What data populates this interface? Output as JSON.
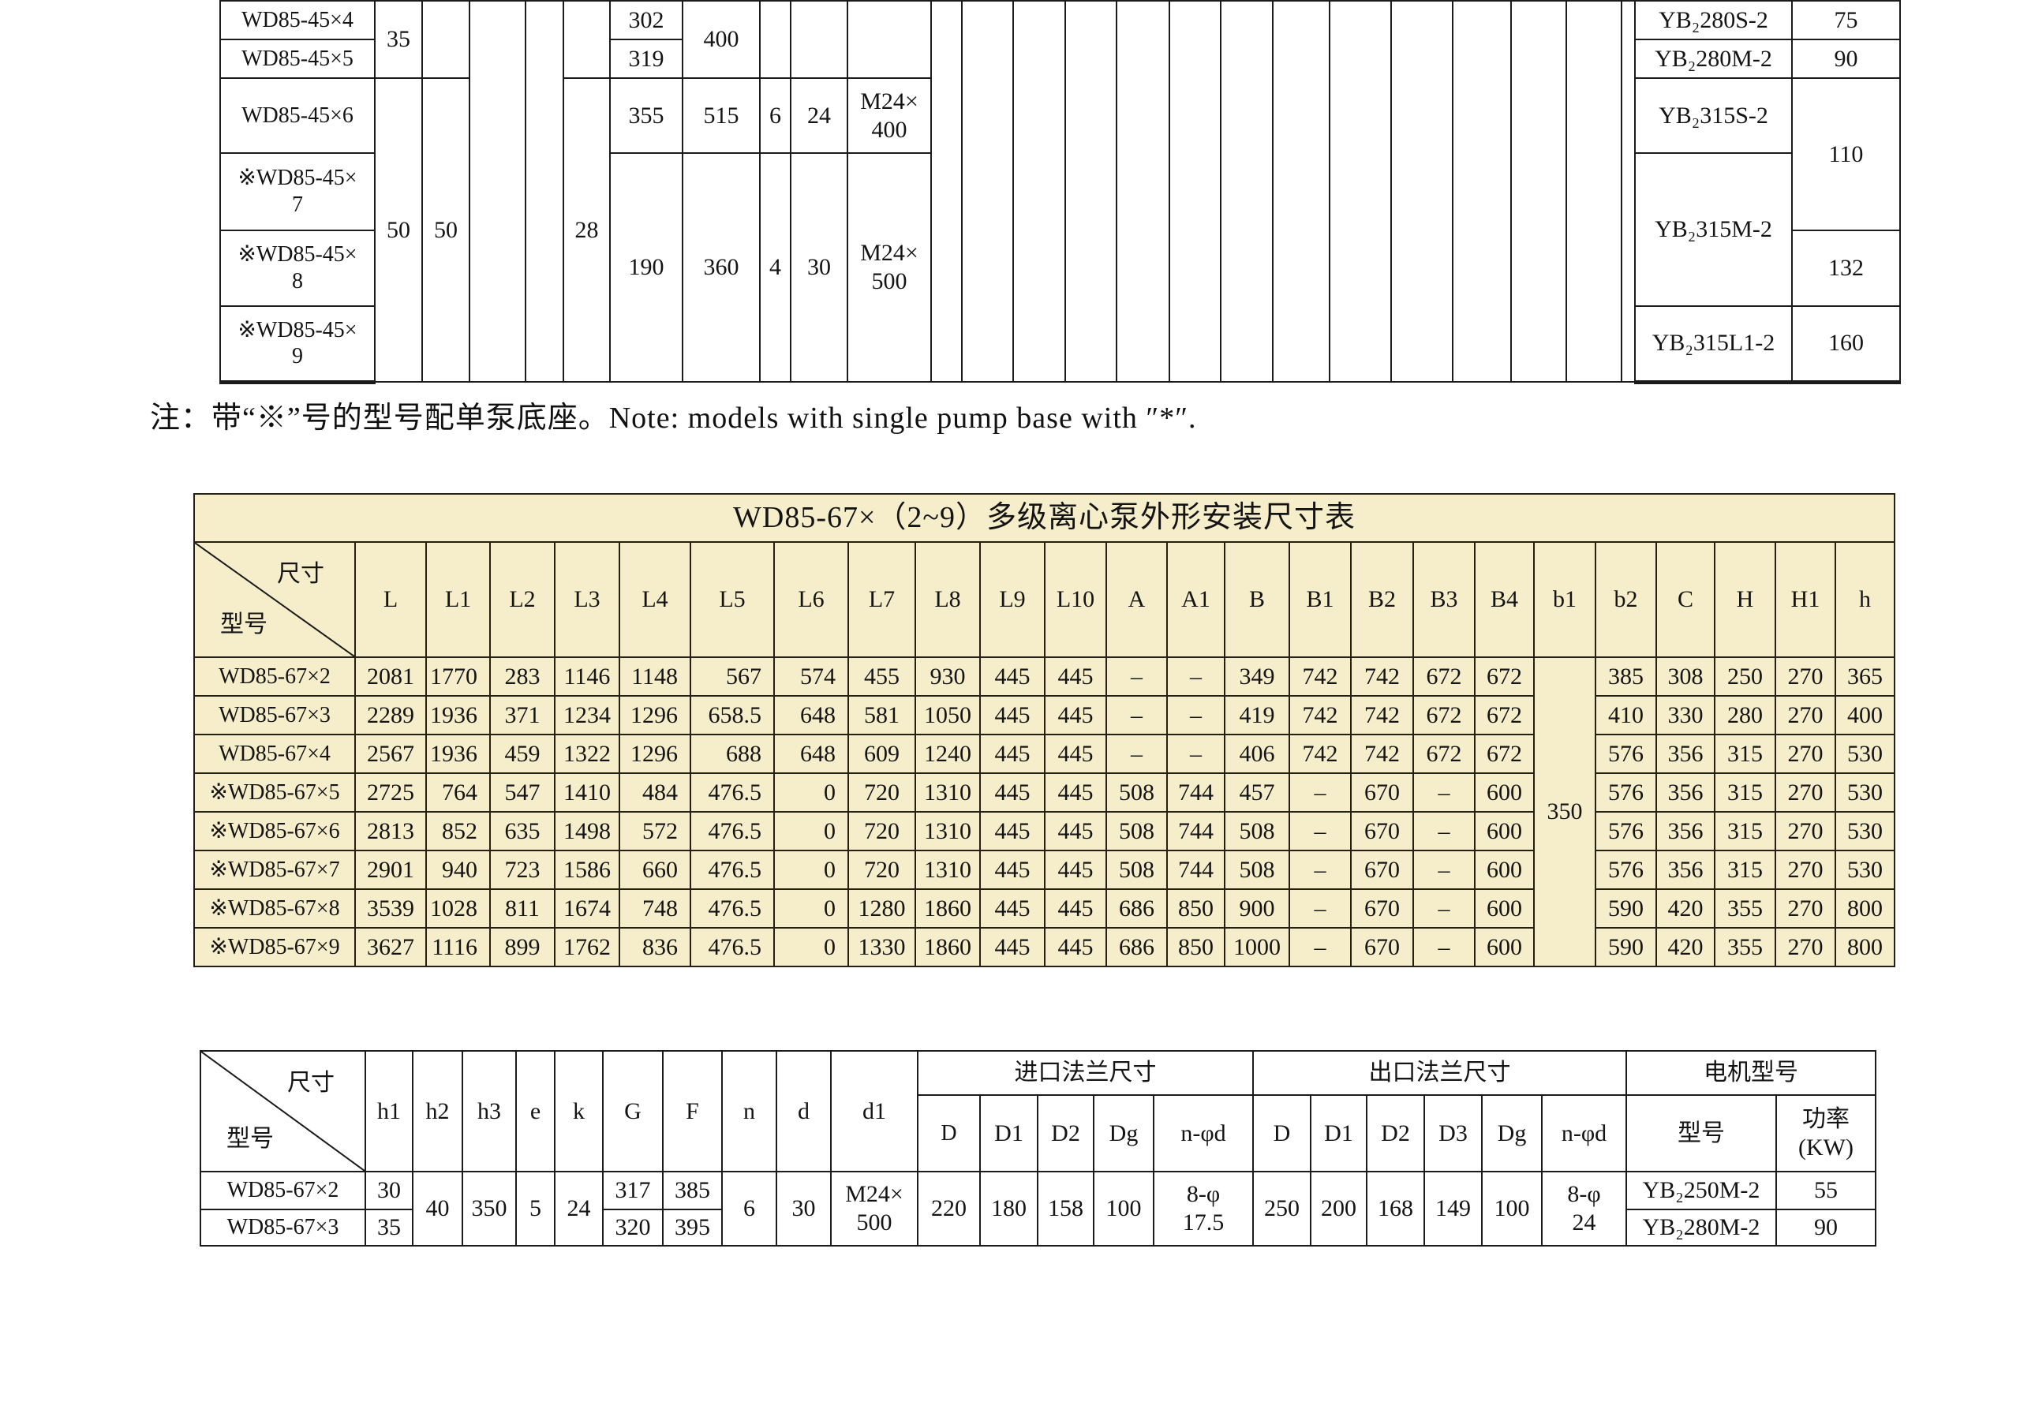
{
  "colors": {
    "table_tint": "#F6EECA",
    "line": "#1b1b1b",
    "page_bg": "#ffffff"
  },
  "note": {
    "text": "注：带“※”号的型号配单泵底座。Note: models with single pump base with ″*″."
  },
  "tables": {
    "top": {
      "cols": [
        196,
        60,
        60,
        71,
        48,
        59,
        92,
        98,
        39,
        72,
        106,
        39,
        65,
        66,
        65,
        67,
        65,
        66,
        72,
        78,
        78,
        74,
        70,
        70,
        17,
        199,
        137
      ],
      "rows": [
        {
          "h": 49,
          "cells": [
            {
              "t": "WD85-45×4",
              "n": "model-cell"
            },
            {
              "t": "35",
              "rs": 2
            },
            {
              "t": "",
              "rs": 2
            },
            {
              "t": "",
              "rs": 6
            },
            {
              "t": "",
              "rs": 6
            },
            {
              "t": "",
              "rs": 2
            },
            "302",
            {
              "t": "400",
              "rs": 2
            },
            {
              "t": "",
              "rs": 2
            },
            {
              "t": "",
              "rs": 2
            },
            {
              "t": "",
              "rs": 2
            },
            {
              "t": "",
              "rs": 6
            },
            {
              "t": "",
              "rs": 6
            },
            {
              "t": "",
              "rs": 6
            },
            {
              "t": "",
              "rs": 6
            },
            {
              "t": "",
              "rs": 6
            },
            {
              "t": "",
              "rs": 6
            },
            {
              "t": "",
              "rs": 6
            },
            {
              "t": "",
              "rs": 6
            },
            {
              "t": "",
              "rs": 6
            },
            {
              "t": "",
              "rs": 6
            },
            {
              "t": "",
              "rs": 6
            },
            {
              "t": "",
              "rs": 6
            },
            {
              "t": "",
              "rs": 6
            },
            {
              "t": "",
              "rs": 6
            },
            {
              "t": "YB₂280S-2",
              "n": "motor-model-cell"
            },
            {
              "t": "75",
              "n": "power-cell"
            }
          ]
        },
        {
          "h": 49,
          "cells": [
            {
              "t": "WD85-45×5",
              "n": "model-cell"
            },
            "319",
            {
              "t": "YB₂280M-2",
              "n": "motor-model-cell"
            },
            {
              "t": "90",
              "n": "power-cell"
            }
          ]
        },
        {
          "h": 95,
          "cells": [
            {
              "t": "WD85-45×6",
              "n": "model-cell"
            },
            {
              "t": "50",
              "rs": 4
            },
            {
              "t": "50",
              "rs": 4
            },
            {
              "t": "28",
              "rs": 4
            },
            "355",
            "515",
            "6",
            "24",
            {
              "t": "M24×\n400"
            },
            {
              "t": "YB₂315S-2",
              "n": "motor-model-cell"
            },
            {
              "t": "110",
              "rs": 2,
              "n": "power-cell"
            }
          ]
        },
        {
          "h": 98,
          "cells": [
            {
              "t": "※WD85-45×\n7",
              "n": "model-cell"
            },
            {
              "t": "190",
              "rs": 3
            },
            {
              "t": "360",
              "rs": 3
            },
            {
              "t": "4",
              "rs": 3
            },
            {
              "t": "30",
              "rs": 3
            },
            {
              "t": "M24×\n500",
              "rs": 3
            },
            {
              "t": "YB₂315M-2",
              "rs": 2,
              "n": "motor-model-cell"
            }
          ]
        },
        {
          "h": 96,
          "cells": [
            {
              "t": "※WD85-45×\n8",
              "n": "model-cell"
            },
            {
              "t": "132",
              "n": "power-cell"
            }
          ]
        },
        {
          "h": 96,
          "cells": [
            {
              "t": "※WD85-45×\n9",
              "n": "model-cell"
            },
            {
              "t": "YB₂315L1-2",
              "n": "motor-model-cell"
            },
            {
              "t": "160",
              "n": "power-cell"
            }
          ]
        }
      ]
    },
    "middle": {
      "bg": "#F6EECA",
      "cols": [
        204,
        90,
        81,
        82,
        82,
        90,
        106,
        94,
        85,
        82,
        82,
        78,
        77,
        73,
        82,
        78,
        79,
        78,
        75,
        78,
        77,
        74,
        77,
        76,
        75
      ],
      "rows": [
        {
          "h": 61,
          "cells": [
            {
              "t": "WD85-67×（2~9）多级离心泵外形安装尺寸表",
              "cs": 25,
              "cls": "title",
              "n": "middle-table-title"
            }
          ]
        },
        {
          "h": 146,
          "cells": [
            {
              "diag": {
                "top": "尺寸",
                "bottom": "型号"
              },
              "n": "diagonal-header-cell"
            },
            "L",
            "L1",
            "L2",
            "L3",
            "L4",
            "L5",
            "L6",
            "L7",
            "L8",
            "L9",
            "L10",
            "A",
            "A1",
            "B",
            "B1",
            "B2",
            "B3",
            "B4",
            "b1",
            "b2",
            "C",
            "H",
            "H1",
            "h"
          ]
        },
        {
          "h": 49,
          "cls": "dr",
          "cells": [
            {
              "t": "WD85-67×2",
              "n": "model-cell"
            },
            "2081",
            "1770",
            "283",
            "1146",
            "1148",
            "567",
            "574",
            "455",
            "930",
            "445",
            "445",
            "–",
            "–",
            "349",
            "742",
            "742",
            "672",
            "672",
            {
              "t": "350",
              "rs": 8
            },
            "385",
            "308",
            "250",
            "270",
            "365"
          ]
        },
        {
          "h": 49,
          "cls": "dr",
          "cells": [
            {
              "t": "WD85-67×3",
              "n": "model-cell"
            },
            "2289",
            "1936",
            "371",
            "1234",
            "1296",
            "658.5",
            "648",
            "581",
            "1050",
            "445",
            "445",
            "–",
            "–",
            "419",
            "742",
            "742",
            "672",
            "672",
            "410",
            "330",
            "280",
            "270",
            "400"
          ]
        },
        {
          "h": 49,
          "cls": "dr",
          "cells": [
            {
              "t": "WD85-67×4",
              "n": "model-cell"
            },
            "2567",
            "1936",
            "459",
            "1322",
            "1296",
            "688",
            "648",
            "609",
            "1240",
            "445",
            "445",
            "–",
            "–",
            "406",
            "742",
            "742",
            "672",
            "672",
            "576",
            "356",
            "315",
            "270",
            "530"
          ]
        },
        {
          "h": 49,
          "cls": "dr",
          "cells": [
            {
              "t": "※WD85-67×5",
              "n": "model-cell"
            },
            "2725",
            "764",
            "547",
            "1410",
            "484",
            "476.5",
            "0",
            "720",
            "1310",
            "445",
            "445",
            "508",
            "744",
            "457",
            "–",
            "670",
            "–",
            "600",
            "576",
            "356",
            "315",
            "270",
            "530"
          ]
        },
        {
          "h": 49,
          "cls": "dr",
          "cells": [
            {
              "t": "※WD85-67×6",
              "n": "model-cell"
            },
            "2813",
            "852",
            "635",
            "1498",
            "572",
            "476.5",
            "0",
            "720",
            "1310",
            "445",
            "445",
            "508",
            "744",
            "508",
            "–",
            "670",
            "–",
            "600",
            "576",
            "356",
            "315",
            "270",
            "530"
          ]
        },
        {
          "h": 49,
          "cls": "dr",
          "cells": [
            {
              "t": "※WD85-67×7",
              "n": "model-cell"
            },
            "2901",
            "940",
            "723",
            "1586",
            "660",
            "476.5",
            "0",
            "720",
            "1310",
            "445",
            "445",
            "508",
            "744",
            "508",
            "–",
            "670",
            "–",
            "600",
            "576",
            "356",
            "315",
            "270",
            "530"
          ]
        },
        {
          "h": 49,
          "cls": "dr",
          "cells": [
            {
              "t": "※WD85-67×8",
              "n": "model-cell"
            },
            "3539",
            "1028",
            "811",
            "1674",
            "748",
            "476.5",
            "0",
            "1280",
            "1860",
            "445",
            "445",
            "686",
            "850",
            "900",
            "–",
            "670",
            "–",
            "600",
            "590",
            "420",
            "355",
            "270",
            "800"
          ]
        },
        {
          "h": 49,
          "cls": "dr",
          "cells": [
            {
              "t": "※WD85-67×9",
              "n": "model-cell"
            },
            "3627",
            "1116",
            "899",
            "1762",
            "836",
            "476.5",
            "0",
            "1330",
            "1860",
            "445",
            "445",
            "686",
            "850",
            "1000",
            "–",
            "670",
            "–",
            "600",
            "590",
            "420",
            "355",
            "270",
            "800"
          ]
        }
      ]
    },
    "bottom": {
      "cols": [
        209,
        60,
        63,
        68,
        49,
        61,
        76,
        75,
        69,
        69,
        110,
        79,
        73,
        71,
        76,
        126,
        73,
        71,
        73,
        73,
        76,
        107,
        190,
        126
      ],
      "rows": [
        {
          "h": 56,
          "cells": [
            {
              "diag": {
                "top": "尺寸",
                "bottom": "型号"
              },
              "rs": 2,
              "n": "diagonal-header-cell"
            },
            {
              "t": "h1",
              "rs": 2
            },
            {
              "t": "h2",
              "rs": 2
            },
            {
              "t": "h3",
              "rs": 2
            },
            {
              "t": "e",
              "rs": 2
            },
            {
              "t": "k",
              "rs": 2
            },
            {
              "t": "G",
              "rs": 2
            },
            {
              "t": "F",
              "rs": 2
            },
            {
              "t": "n",
              "rs": 2
            },
            {
              "t": "d",
              "rs": 2
            },
            {
              "t": "d1",
              "rs": 2
            },
            {
              "t": "进口法兰尺寸",
              "cs": 5,
              "n": "inlet-flange-group-header"
            },
            {
              "t": "出口法兰尺寸",
              "cs": 6,
              "n": "outlet-flange-group-header"
            },
            {
              "t": "电机型号",
              "cs": 2,
              "n": "motor-group-header"
            }
          ]
        },
        {
          "h": 97,
          "cells": [
            "D",
            "D1",
            "D2",
            "Dg",
            "n-φd",
            "D",
            "D1",
            "D2",
            "D3",
            "Dg",
            "n-φd",
            {
              "t": "型号",
              "n": "motor-model-header"
            },
            {
              "t": "功率\n(KW)",
              "n": "power-header"
            }
          ]
        },
        {
          "h": 48,
          "cells": [
            {
              "t": "WD85-67×2",
              "n": "model-cell"
            },
            "30",
            {
              "t": "40",
              "rs": 2
            },
            {
              "t": "350",
              "rs": 2
            },
            {
              "t": "5",
              "rs": 2
            },
            {
              "t": "24",
              "rs": 2
            },
            "317",
            "385",
            {
              "t": "6",
              "rs": 2
            },
            {
              "t": "30",
              "rs": 2
            },
            {
              "t": "M24×\n500",
              "rs": 2
            },
            {
              "t": "220",
              "rs": 2
            },
            {
              "t": "180",
              "rs": 2
            },
            {
              "t": "158",
              "rs": 2
            },
            {
              "t": "100",
              "rs": 2
            },
            {
              "t": "8-φ\n17.5",
              "rs": 2
            },
            {
              "t": "250",
              "rs": 2
            },
            {
              "t": "200",
              "rs": 2
            },
            {
              "t": "168",
              "rs": 2
            },
            {
              "t": "149",
              "rs": 2
            },
            {
              "t": "100",
              "rs": 2
            },
            {
              "t": "8-φ\n24",
              "rs": 2
            },
            {
              "t": "YB₂250M-2",
              "n": "motor-model-cell"
            },
            {
              "t": "55",
              "n": "power-cell"
            }
          ]
        },
        {
          "h": 46,
          "cells": [
            {
              "t": "WD85-67×3",
              "n": "model-cell"
            },
            "35",
            "320",
            "395",
            {
              "t": "YB₂280M-2",
              "n": "motor-model-cell"
            },
            {
              "t": "90",
              "n": "power-cell"
            }
          ]
        }
      ]
    }
  }
}
